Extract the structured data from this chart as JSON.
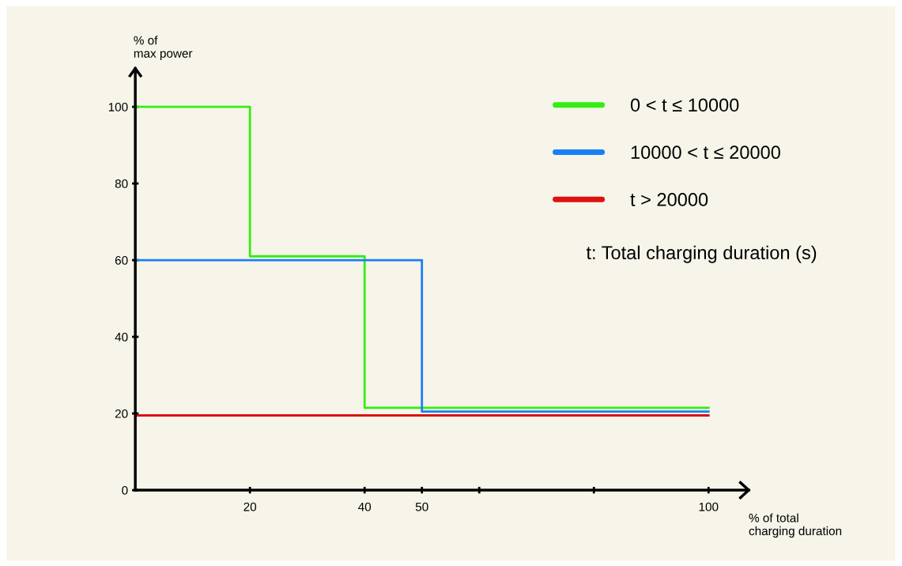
{
  "chart_data": {
    "type": "step",
    "xlabel": "% of total\ncharging duration",
    "ylabel": "% of\nmax power",
    "series": [
      {
        "name": "0 < t ≤ 10000",
        "color": "#33ee11",
        "x": [
          0,
          20,
          40,
          100
        ],
        "values": [
          100,
          61,
          21.5,
          21.5
        ]
      },
      {
        "name": "10000 < t ≤ 20000",
        "color": "#1a7ff5",
        "x": [
          0,
          50,
          100
        ],
        "values": [
          60,
          20.5,
          20.5
        ]
      },
      {
        "name": "t > 20000",
        "color": "#dd1111",
        "x": [
          0,
          100
        ],
        "values": [
          19.5,
          19.5
        ]
      }
    ],
    "xlim": [
      0,
      107
    ],
    "ylim": [
      0,
      110
    ],
    "xticks": [
      20,
      40,
      50,
      {
        "value": 60,
        "label": null
      },
      {
        "value": 80,
        "label": null
      },
      100
    ],
    "yticks": [
      0,
      20,
      40,
      60,
      80,
      100
    ],
    "legend": "top right",
    "grid": false,
    "annotations": [
      "t: Total charging duration (s)"
    ]
  }
}
